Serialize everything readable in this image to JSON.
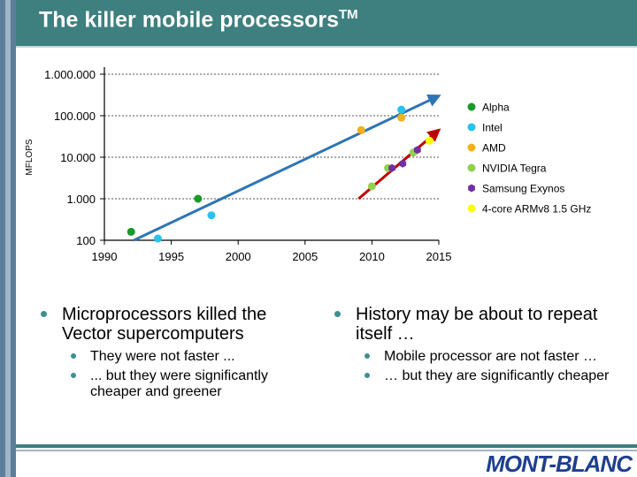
{
  "slide": {
    "title": "The killer mobile processors",
    "title_sup": "TM",
    "logo": "MONT-BLANC"
  },
  "bullets": {
    "left": {
      "main": "Microprocessors killed the Vector supercomputers",
      "sub": [
        "They were not faster ...",
        "... but they were significantly cheaper and greener"
      ]
    },
    "right": {
      "main": "History may be about to repeat itself …",
      "sub": [
        "Mobile processor are not faster …",
        "… but they are significantly cheaper"
      ]
    }
  },
  "colors": {
    "title_bar": "#3e7f7f",
    "accent": "#3e8f8f",
    "logo": "#1f3f8f",
    "trend_blue": "#2e75b6",
    "trend_red": "#c00000"
  },
  "chart_data": {
    "type": "scatter",
    "ylabel": "MFLOPS",
    "xlabel": "",
    "xlim": [
      1990,
      2015
    ],
    "ylim": [
      100,
      1000000
    ],
    "y_scale": "log",
    "x_ticks": [
      1990,
      1995,
      2000,
      2005,
      2010,
      2015
    ],
    "y_ticks": [
      100,
      1000,
      10000,
      100000,
      1000000
    ],
    "y_tick_labels": [
      "100",
      "1.000",
      "10.000",
      "100.000",
      "1.000.000"
    ],
    "grid": "horizontal dashed",
    "legend_position": "right",
    "series": [
      {
        "name": "Alpha",
        "color": "#1a9a2a",
        "marker": "circle",
        "points": [
          [
            1992,
            160
          ],
          [
            1997,
            1000
          ]
        ]
      },
      {
        "name": "Intel",
        "color": "#29c1f0",
        "marker": "circle",
        "points": [
          [
            1994,
            110
          ],
          [
            1998,
            400
          ],
          [
            2012.2,
            140000
          ]
        ]
      },
      {
        "name": "AMD",
        "color": "#f5b01a",
        "marker": "circle",
        "points": [
          [
            2009.2,
            45000
          ],
          [
            2012.2,
            90000
          ]
        ]
      },
      {
        "name": "NVIDIA Tegra",
        "color": "#92d050",
        "marker": "circle",
        "points": [
          [
            2010,
            2000
          ],
          [
            2011.2,
            5500
          ],
          [
            2013.1,
            13000
          ]
        ]
      },
      {
        "name": "Samsung Exynos",
        "color": "#7030a0",
        "marker": "hexagon",
        "points": [
          [
            2011.5,
            5500
          ],
          [
            2012.3,
            7000
          ],
          [
            2013.4,
            15000
          ]
        ]
      },
      {
        "name": "4-core ARMv8 1.5 GHz",
        "color": "#ffff00",
        "marker": "circle",
        "points": [
          [
            2014.3,
            25000
          ]
        ]
      }
    ],
    "trend_lines": [
      {
        "color": "#2e75b6",
        "from": [
          1992.2,
          100
        ],
        "to": [
          2015,
          300000
        ]
      },
      {
        "color": "#c00000",
        "from": [
          2009,
          1000
        ],
        "to": [
          2015,
          45000
        ]
      }
    ]
  }
}
